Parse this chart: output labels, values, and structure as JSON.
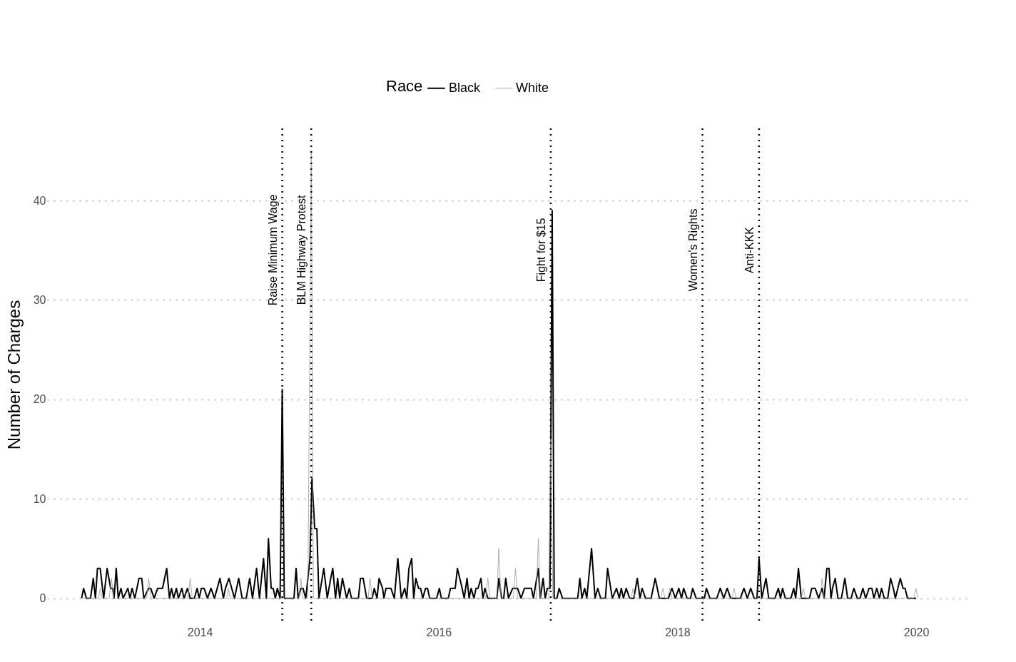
{
  "chart_data": {
    "type": "line",
    "ylabel": "Number of Charges",
    "legend_title": "Race",
    "legend": "top",
    "grid": "y",
    "xlim": [
      2012.72,
      2020.43
    ],
    "xticks": [
      2014,
      2016,
      2018,
      2020
    ],
    "ylim": [
      -2.25,
      47.25
    ],
    "yticks": [
      0,
      10,
      20,
      30,
      40
    ],
    "ref_lines": [
      {
        "axis": "x",
        "value": 2014.69,
        "label": "Raise Minimum Wage",
        "line_style": "dotted"
      },
      {
        "axis": "x",
        "value": 2014.933,
        "label": "BLM Highway Protest",
        "line_style": "dotted"
      },
      {
        "axis": "x",
        "value": 2016.939,
        "label": "Fight for $15",
        "line_style": "dotted"
      },
      {
        "axis": "x",
        "value": 2018.21,
        "label": "Women's Rights",
        "line_style": "dotted"
      },
      {
        "axis": "x",
        "value": 2018.684,
        "label": "Anti-KKK",
        "line_style": "dotted"
      }
    ],
    "series": [
      {
        "name": "Black",
        "color": "#000000",
        "x": [
          2013.009,
          2013.026,
          2013.049,
          2013.084,
          2013.107,
          2013.125,
          2013.142,
          2013.165,
          2013.194,
          2013.223,
          2013.252,
          2013.27,
          2013.281,
          2013.299,
          2013.316,
          2013.339,
          2013.357,
          2013.397,
          2013.414,
          2013.432,
          2013.455,
          2013.49,
          2013.513,
          2013.53,
          2013.571,
          2013.588,
          2013.617,
          2013.646,
          2013.687,
          2013.722,
          2013.745,
          2013.762,
          2013.78,
          2013.803,
          2013.82,
          2013.849,
          2013.867,
          2013.896,
          2013.919,
          2013.954,
          2013.977,
          2013.994,
          2014.012,
          2014.035,
          2014.064,
          2014.093,
          2014.122,
          2014.168,
          2014.197,
          2014.214,
          2014.243,
          2014.29,
          2014.325,
          2014.354,
          2014.388,
          2014.417,
          2014.441,
          2014.475,
          2014.499,
          2014.533,
          2014.557,
          2014.574,
          2014.597,
          2014.614,
          2014.632,
          2014.649,
          2014.672,
          2014.69,
          2014.707,
          2014.788,
          2014.806,
          2014.823,
          2014.846,
          2014.864,
          2014.887,
          2014.922,
          2014.939,
          2014.962,
          2014.98,
          2014.997,
          2015.038,
          2015.067,
          2015.096,
          2015.113,
          2015.136,
          2015.154,
          2015.171,
          2015.194,
          2015.212,
          2015.229,
          2015.252,
          2015.27,
          2015.328,
          2015.345,
          2015.368,
          2015.397,
          2015.443,
          2015.461,
          2015.484,
          2015.501,
          2015.53,
          2015.542,
          2015.559,
          2015.6,
          2015.629,
          2015.658,
          2015.687,
          2015.716,
          2015.733,
          2015.751,
          2015.774,
          2015.791,
          2015.809,
          2015.832,
          2015.849,
          2015.867,
          2015.89,
          2015.907,
          2015.925,
          2015.983,
          2016.006,
          2016.023,
          2016.081,
          2016.099,
          2016.139,
          2016.157,
          2016.197,
          2016.214,
          2016.238,
          2016.255,
          2016.272,
          2016.296,
          2016.313,
          2016.33,
          2016.354,
          2016.371,
          2016.388,
          2016.412,
          2016.487,
          2016.504,
          2016.528,
          2016.545,
          2016.562,
          2016.585,
          2016.62,
          2016.661,
          2016.69,
          2016.719,
          2016.777,
          2016.794,
          2016.835,
          2016.852,
          2016.875,
          2016.893,
          2016.91,
          2016.933,
          2016.951,
          2016.968,
          2016.991,
          2017.009,
          2017.038,
          2017.165,
          2017.183,
          2017.2,
          2017.223,
          2017.241,
          2017.281,
          2017.31,
          2017.333,
          2017.357,
          2017.397,
          2017.415,
          2017.455,
          2017.49,
          2017.513,
          2017.53,
          2017.548,
          2017.571,
          2017.6,
          2017.635,
          2017.664,
          2017.687,
          2017.704,
          2017.733,
          2017.78,
          2017.814,
          2017.849,
          2017.925,
          2017.954,
          2017.983,
          2018.012,
          2018.035,
          2018.052,
          2018.081,
          2018.11,
          2018.128,
          2018.157,
          2018.226,
          2018.243,
          2018.272,
          2018.33,
          2018.359,
          2018.388,
          2018.417,
          2018.446,
          2018.528,
          2018.557,
          2018.586,
          2018.614,
          2018.643,
          2018.667,
          2018.684,
          2018.707,
          2018.742,
          2018.765,
          2018.817,
          2018.846,
          2018.864,
          2018.881,
          2018.904,
          2018.951,
          2018.974,
          2018.991,
          2019.014,
          2019.038,
          2019.107,
          2019.125,
          2019.154,
          2019.183,
          2019.212,
          2019.229,
          2019.252,
          2019.27,
          2019.287,
          2019.299,
          2019.322,
          2019.345,
          2019.374,
          2019.403,
          2019.426,
          2019.455,
          2019.478,
          2019.507,
          2019.53,
          2019.554,
          2019.577,
          2019.606,
          2019.629,
          2019.646,
          2019.67,
          2019.693,
          2019.71,
          2019.733,
          2019.762,
          2019.786,
          2019.809,
          2019.826,
          2019.867,
          2019.89,
          2019.907,
          2019.928,
          2020.0
        ],
        "values": [
          0,
          1,
          0,
          0,
          2,
          0,
          3,
          3,
          0,
          3,
          1,
          1,
          0,
          3,
          0,
          1,
          0,
          1,
          0,
          1,
          0,
          2,
          2,
          0,
          1,
          1,
          0,
          1,
          1,
          3,
          0,
          1,
          0,
          1,
          0,
          1,
          0,
          1,
          0,
          0,
          1,
          0,
          1,
          1,
          0,
          1,
          0,
          2,
          0,
          1,
          2,
          0,
          2,
          0,
          0,
          2,
          0,
          3,
          0,
          4,
          0,
          6,
          1,
          1,
          0,
          1,
          0,
          21,
          0,
          0,
          3,
          0,
          1,
          1,
          0,
          4,
          12,
          7,
          7,
          0,
          3,
          0,
          2,
          3,
          0,
          2,
          0,
          2,
          1,
          0,
          1,
          0,
          0,
          2,
          2,
          0,
          0,
          1,
          0,
          2,
          1,
          0,
          1,
          1,
          0,
          4,
          0,
          1,
          0,
          3,
          4,
          0,
          2,
          1,
          1,
          0,
          1,
          1,
          0,
          0,
          1,
          0,
          0,
          1,
          1,
          3,
          1,
          0,
          2,
          0,
          1,
          0,
          1,
          1,
          2,
          0,
          1,
          0,
          0,
          2,
          0,
          0,
          2,
          0,
          1,
          1,
          0,
          1,
          1,
          0,
          3,
          0,
          2,
          0,
          1,
          1,
          39,
          0,
          0,
          1,
          0,
          0,
          2,
          0,
          1,
          0,
          5,
          0,
          1,
          0,
          0,
          3,
          0,
          1,
          0,
          1,
          0,
          1,
          0,
          0,
          2,
          0,
          1,
          0,
          0,
          2,
          0,
          0,
          1,
          0,
          1,
          0,
          1,
          0,
          0,
          1,
          0,
          0,
          1,
          0,
          0,
          1,
          0,
          1,
          0,
          0,
          1,
          0,
          1,
          0,
          0,
          4,
          0,
          2,
          0,
          0,
          1,
          0,
          1,
          0,
          0,
          1,
          0,
          3,
          0,
          0,
          1,
          1,
          0,
          1,
          0,
          3,
          3,
          0,
          1,
          2,
          0,
          0,
          2,
          0,
          0,
          1,
          0,
          0,
          1,
          0,
          1,
          1,
          0,
          1,
          0,
          1,
          0,
          0,
          2,
          1,
          0,
          2,
          1,
          1,
          0,
          0
        ]
      },
      {
        "name": "White",
        "color": "#999999",
        "x": [
          2013.009,
          2013.15,
          2013.165,
          2013.18,
          2013.241,
          2013.258,
          2013.281,
          2013.554,
          2013.571,
          2013.588,
          2013.901,
          2013.919,
          2013.936,
          2014.226,
          2014.238,
          2014.255,
          2014.829,
          2014.846,
          2014.864,
          2014.904,
          2014.933,
          2014.951,
          2015.409,
          2015.426,
          2015.443,
          2016.394,
          2016.412,
          2016.429,
          2016.487,
          2016.504,
          2016.522,
          2016.626,
          2016.643,
          2016.661,
          2016.817,
          2016.835,
          2016.852,
          2016.922,
          2016.939,
          2016.957,
          2017.612,
          2017.629,
          2017.646,
          2017.861,
          2017.878,
          2017.896,
          2017.919,
          2017.936,
          2017.954,
          2018.458,
          2018.475,
          2018.493,
          2019.038,
          2019.055,
          2019.072,
          2019.194,
          2019.212,
          2019.229,
          2019.98,
          2019.998,
          2020.015
        ],
        "values": [
          0,
          0,
          1,
          0,
          0,
          2,
          0,
          0,
          2,
          0,
          0,
          2,
          0,
          0,
          1,
          0,
          0,
          2,
          0,
          0,
          45,
          0,
          0,
          2,
          0,
          0,
          2,
          0,
          0,
          5,
          0,
          0,
          3,
          0,
          0,
          6,
          0,
          0,
          16,
          0,
          0,
          1,
          0,
          0,
          1,
          0,
          0,
          1,
          0,
          0,
          1,
          0,
          0,
          1,
          0,
          0,
          2,
          0,
          0,
          1,
          0
        ]
      }
    ]
  }
}
